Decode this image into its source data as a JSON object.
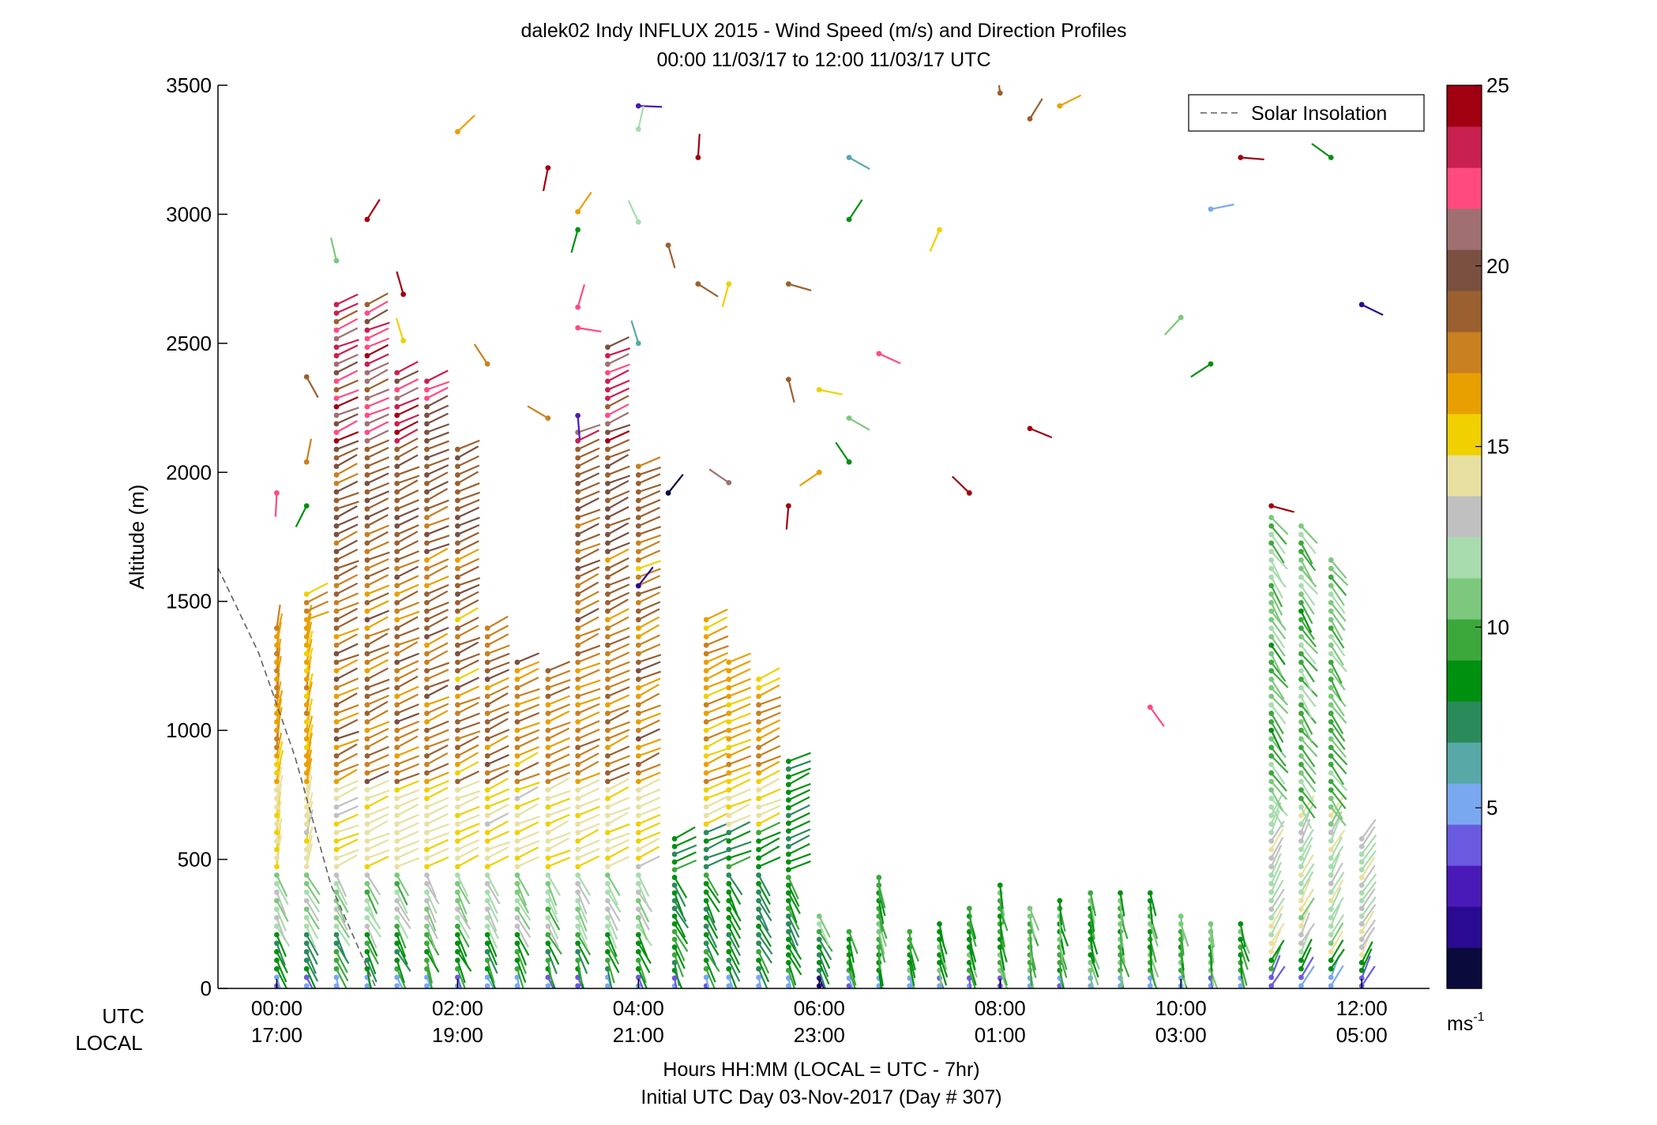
{
  "chart_data": {
    "type": "scatter",
    "title_line1": "dalek02 Indy INFLUX 2015 - Wind Speed (m/s) and Direction Profiles",
    "title_line2": "00:00 11/03/17 to 12:00 11/03/17  UTC",
    "ylabel": "Altitude (m)",
    "xlabel_line1": "Hours HH:MM  (LOCAL = UTC - 7hr)",
    "xlabel_line2": "Initial UTC Day 03-Nov-2017 (Day # 307)",
    "row_label_utc": "UTC",
    "row_label_local": "LOCAL",
    "xlim": [
      -0.65,
      12.75
    ],
    "ylim": [
      0,
      3500
    ],
    "x_ticks": [
      {
        "x": 0,
        "utc": "00:00",
        "local": "17:00"
      },
      {
        "x": 2,
        "utc": "02:00",
        "local": "19:00"
      },
      {
        "x": 4,
        "utc": "04:00",
        "local": "21:00"
      },
      {
        "x": 6,
        "utc": "06:00",
        "local": "23:00"
      },
      {
        "x": 8,
        "utc": "08:00",
        "local": "01:00"
      },
      {
        "x": 10,
        "utc": "10:00",
        "local": "03:00"
      },
      {
        "x": 12,
        "utc": "12:00",
        "local": "05:00"
      }
    ],
    "y_ticks": [
      0,
      500,
      1000,
      1500,
      2000,
      2500,
      3000,
      3500
    ],
    "legend": {
      "entry": "Solar Insolation",
      "position": "top-right",
      "style": "dashed",
      "color": "#808080"
    },
    "solar_insolation": {
      "x": [
        -0.65,
        -0.2,
        0.2,
        0.6,
        1.1
      ],
      "y": [
        1630,
        1300,
        900,
        400,
        0
      ]
    },
    "colorbar": {
      "range": [
        0,
        25
      ],
      "ticks": [
        5,
        10,
        15,
        20,
        25
      ],
      "unit_label": "ms",
      "unit_exponent": "-1",
      "colors": [
        "#0a0a3c",
        "#2a0a90",
        "#4a1ab8",
        "#6a5ae0",
        "#7aa8f0",
        "#58a8a8",
        "#2a8a5a",
        "#009010",
        "#3ca83c",
        "#7cc87c",
        "#a8dcae",
        "#c0c0c0",
        "#e8e0a0",
        "#f0d000",
        "#e8a000",
        "#c88020",
        "#9a6030",
        "#7a5040",
        "#a07070",
        "#ff4a80",
        "#c82050",
        "#a00010"
      ]
    },
    "profiles": [
      {
        "t": 0.0,
        "top": 1420,
        "low": "blue"
      },
      {
        "t": 0.33,
        "top": 1560,
        "low": "blue"
      },
      {
        "t": 0.66,
        "top": 2680,
        "low": "blue"
      },
      {
        "t": 1.0,
        "top": 2650,
        "low": "blue"
      },
      {
        "t": 1.33,
        "top": 2400,
        "low": "blue"
      },
      {
        "t": 1.66,
        "top": 2360,
        "low": "blue"
      },
      {
        "t": 2.0,
        "top": 2100,
        "low": "blue"
      },
      {
        "t": 2.33,
        "top": 1420,
        "low": "blue"
      },
      {
        "t": 2.66,
        "top": 1280,
        "low": "blue"
      },
      {
        "t": 3.0,
        "top": 1260,
        "low": "blue"
      },
      {
        "t": 3.33,
        "top": 2170,
        "low": "blue"
      },
      {
        "t": 3.66,
        "top": 2500,
        "low": "blue"
      },
      {
        "t": 4.0,
        "top": 2030,
        "low": "blue"
      },
      {
        "t": 4.4,
        "top": 580,
        "low": "blue"
      },
      {
        "t": 4.75,
        "top": 1430,
        "low": "blue"
      },
      {
        "t": 5.0,
        "top": 1290,
        "low": "blue"
      },
      {
        "t": 5.33,
        "top": 1200,
        "low": "blue"
      },
      {
        "t": 5.66,
        "top": 900,
        "low": "blue"
      },
      {
        "t": 6.0,
        "top": 300,
        "low": "purple"
      },
      {
        "t": 6.33,
        "top": 220,
        "low": "green"
      },
      {
        "t": 6.66,
        "top": 430,
        "low": "green"
      },
      {
        "t": 7.0,
        "top": 230,
        "low": "green"
      },
      {
        "t": 7.33,
        "top": 270,
        "low": "green"
      },
      {
        "t": 7.66,
        "top": 320,
        "low": "green"
      },
      {
        "t": 8.0,
        "top": 400,
        "low": "green"
      },
      {
        "t": 8.33,
        "top": 330,
        "low": "green"
      },
      {
        "t": 8.66,
        "top": 350,
        "low": "green"
      },
      {
        "t": 9.0,
        "top": 380,
        "low": "green"
      },
      {
        "t": 9.33,
        "top": 380,
        "low": "green"
      },
      {
        "t": 9.66,
        "top": 370,
        "low": "green"
      },
      {
        "t": 10.0,
        "top": 300,
        "low": "green"
      },
      {
        "t": 10.33,
        "top": 260,
        "low": "green"
      },
      {
        "t": 10.66,
        "top": 270,
        "low": "green"
      },
      {
        "t": 11.0,
        "top": 1830,
        "low": "green"
      },
      {
        "t": 11.33,
        "top": 1820,
        "low": "green"
      },
      {
        "t": 11.66,
        "top": 1660,
        "low": "green"
      },
      {
        "t": 12.0,
        "top": 580,
        "low": "green"
      }
    ],
    "scattered_barbs": [
      {
        "t": 0.0,
        "alt": 1920,
        "speed": 22
      },
      {
        "t": 0.33,
        "alt": 2370,
        "speed": 19
      },
      {
        "t": 0.33,
        "alt": 2040,
        "speed": 18
      },
      {
        "t": 0.33,
        "alt": 1870,
        "speed": 8
      },
      {
        "t": 0.66,
        "alt": 2820,
        "speed": 11
      },
      {
        "t": 1.0,
        "alt": 2980,
        "speed": 24
      },
      {
        "t": 1.4,
        "alt": 2690,
        "speed": 24
      },
      {
        "t": 1.4,
        "alt": 2510,
        "speed": 15
      },
      {
        "t": 2.0,
        "alt": 3320,
        "speed": 17
      },
      {
        "t": 2.33,
        "alt": 2420,
        "speed": 18
      },
      {
        "t": 3.0,
        "alt": 2210,
        "speed": 18
      },
      {
        "t": 3.0,
        "alt": 3180,
        "speed": 24
      },
      {
        "t": 3.33,
        "alt": 3010,
        "speed": 16
      },
      {
        "t": 3.33,
        "alt": 2940,
        "speed": 8
      },
      {
        "t": 3.33,
        "alt": 2640,
        "speed": 22
      },
      {
        "t": 3.33,
        "alt": 2560,
        "speed": 22
      },
      {
        "t": 3.33,
        "alt": 2220,
        "speed": 3
      },
      {
        "t": 4.0,
        "alt": 3420,
        "speed": 3
      },
      {
        "t": 4.0,
        "alt": 3330,
        "speed": 12
      },
      {
        "t": 4.0,
        "alt": 2970,
        "speed": 12
      },
      {
        "t": 4.0,
        "alt": 2500,
        "speed": 6
      },
      {
        "t": 4.0,
        "alt": 1560,
        "speed": 2
      },
      {
        "t": 4.33,
        "alt": 2880,
        "speed": 19
      },
      {
        "t": 4.33,
        "alt": 1920,
        "speed": 1
      },
      {
        "t": 4.66,
        "alt": 3220,
        "speed": 24
      },
      {
        "t": 4.66,
        "alt": 2730,
        "speed": 19
      },
      {
        "t": 5.0,
        "alt": 2730,
        "speed": 15
      },
      {
        "t": 5.0,
        "alt": 1960,
        "speed": 21
      },
      {
        "t": 5.66,
        "alt": 2360,
        "speed": 19
      },
      {
        "t": 5.66,
        "alt": 1870,
        "speed": 24
      },
      {
        "t": 5.66,
        "alt": 2730,
        "speed": 19
      },
      {
        "t": 6.0,
        "alt": 2320,
        "speed": 15
      },
      {
        "t": 6.0,
        "alt": 2000,
        "speed": 16
      },
      {
        "t": 6.33,
        "alt": 3220,
        "speed": 6
      },
      {
        "t": 6.33,
        "alt": 2980,
        "speed": 9
      },
      {
        "t": 6.33,
        "alt": 2210,
        "speed": 11
      },
      {
        "t": 6.33,
        "alt": 2040,
        "speed": 8
      },
      {
        "t": 6.66,
        "alt": 2460,
        "speed": 22
      },
      {
        "t": 7.33,
        "alt": 2940,
        "speed": 15
      },
      {
        "t": 7.66,
        "alt": 1920,
        "speed": 24
      },
      {
        "t": 8.0,
        "alt": 3470,
        "speed": 19
      },
      {
        "t": 8.33,
        "alt": 3370,
        "speed": 19
      },
      {
        "t": 8.66,
        "alt": 3420,
        "speed": 17
      },
      {
        "t": 8.33,
        "alt": 2170,
        "speed": 24
      },
      {
        "t": 9.66,
        "alt": 1090,
        "speed": 22
      },
      {
        "t": 10.0,
        "alt": 2600,
        "speed": 11
      },
      {
        "t": 10.33,
        "alt": 3020,
        "speed": 5
      },
      {
        "t": 10.33,
        "alt": 2420,
        "speed": 8
      },
      {
        "t": 10.66,
        "alt": 3220,
        "speed": 24
      },
      {
        "t": 11.0,
        "alt": 1870,
        "speed": 24
      },
      {
        "t": 11.66,
        "alt": 3220,
        "speed": 8
      },
      {
        "t": 12.0,
        "alt": 2650,
        "speed": 2
      }
    ]
  }
}
